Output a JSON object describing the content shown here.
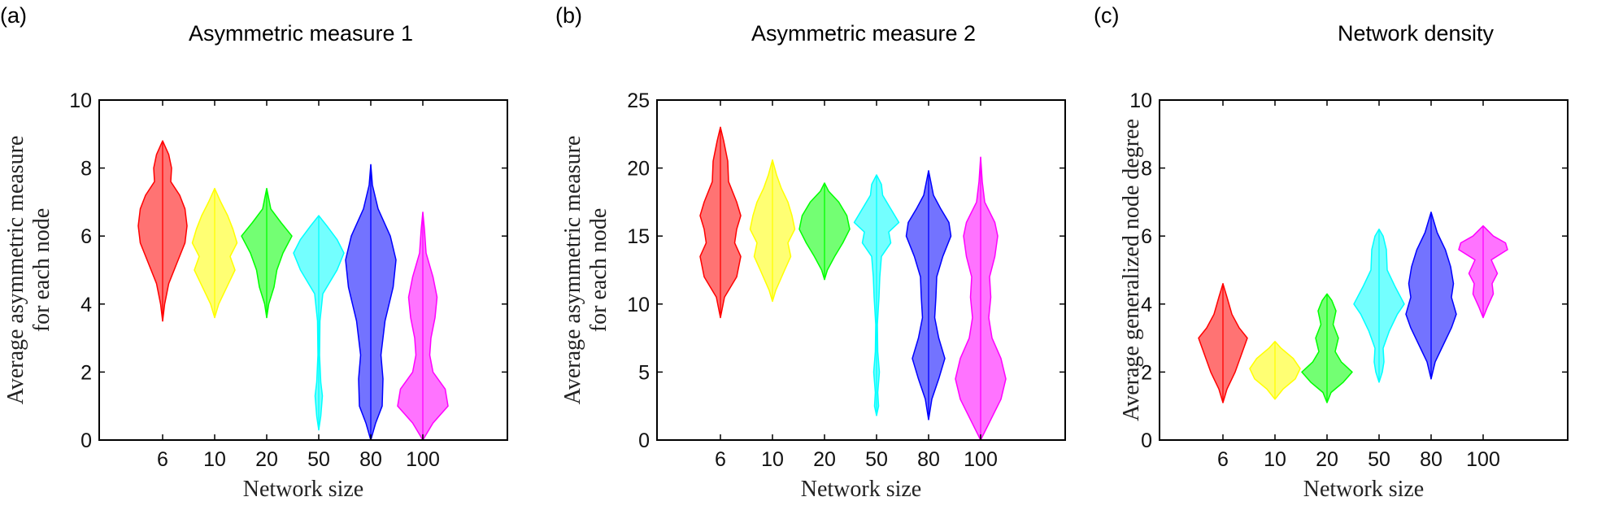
{
  "chart_data": [
    {
      "type": "violin",
      "panel_label": "(a)",
      "title": "Asymmetric measure 1",
      "xlabel": "Network size",
      "ylabel_lines": [
        "Average asymmetric measure",
        "for each node"
      ],
      "ylim": [
        0,
        10
      ],
      "yticks": [
        0,
        2,
        4,
        6,
        8,
        10
      ],
      "categories": [
        "6",
        "10",
        "20",
        "50",
        "80",
        "100"
      ],
      "colors": [
        "#ff0000",
        "#ffff00",
        "#00ff00",
        "#00ffff",
        "#0000ff",
        "#ff00ff"
      ],
      "violins": [
        {
          "min": 3.5,
          "max": 8.8,
          "profile": [
            [
              3.5,
              0.0
            ],
            [
              4.0,
              0.05
            ],
            [
              4.6,
              0.15
            ],
            [
              5.2,
              0.35
            ],
            [
              5.8,
              0.55
            ],
            [
              6.3,
              0.6
            ],
            [
              6.8,
              0.55
            ],
            [
              7.2,
              0.42
            ],
            [
              7.6,
              0.2
            ],
            [
              8.0,
              0.22
            ],
            [
              8.4,
              0.15
            ],
            [
              8.8,
              0.0
            ]
          ]
        },
        {
          "min": 3.6,
          "max": 7.4,
          "profile": [
            [
              3.6,
              0.0
            ],
            [
              4.0,
              0.1
            ],
            [
              4.5,
              0.3
            ],
            [
              5.0,
              0.5
            ],
            [
              5.4,
              0.38
            ],
            [
              5.8,
              0.55
            ],
            [
              6.2,
              0.45
            ],
            [
              6.6,
              0.32
            ],
            [
              7.0,
              0.15
            ],
            [
              7.4,
              0.0
            ]
          ]
        },
        {
          "min": 3.6,
          "max": 7.4,
          "profile": [
            [
              3.6,
              0.0
            ],
            [
              4.0,
              0.05
            ],
            [
              4.5,
              0.18
            ],
            [
              5.0,
              0.25
            ],
            [
              5.5,
              0.4
            ],
            [
              6.0,
              0.62
            ],
            [
              6.4,
              0.35
            ],
            [
              6.8,
              0.1
            ],
            [
              7.1,
              0.05
            ],
            [
              7.4,
              0.0
            ]
          ]
        },
        {
          "min": 0.3,
          "max": 6.6,
          "profile": [
            [
              0.3,
              0.0
            ],
            [
              0.7,
              0.05
            ],
            [
              1.0,
              0.07
            ],
            [
              1.3,
              0.09
            ],
            [
              1.7,
              0.05
            ],
            [
              2.5,
              0.02
            ],
            [
              3.5,
              0.03
            ],
            [
              4.3,
              0.1
            ],
            [
              5.0,
              0.45
            ],
            [
              5.5,
              0.62
            ],
            [
              5.9,
              0.45
            ],
            [
              6.3,
              0.2
            ],
            [
              6.6,
              0.0
            ]
          ]
        },
        {
          "min": 0.0,
          "max": 8.1,
          "profile": [
            [
              0.0,
              0.0
            ],
            [
              0.5,
              0.12
            ],
            [
              1.0,
              0.28
            ],
            [
              1.8,
              0.3
            ],
            [
              2.5,
              0.25
            ],
            [
              3.5,
              0.35
            ],
            [
              4.5,
              0.55
            ],
            [
              5.3,
              0.62
            ],
            [
              6.0,
              0.48
            ],
            [
              6.8,
              0.18
            ],
            [
              7.5,
              0.04
            ],
            [
              8.1,
              0.0
            ]
          ]
        },
        {
          "min": 0.0,
          "max": 6.7,
          "profile": [
            [
              0.0,
              0.0
            ],
            [
              0.5,
              0.25
            ],
            [
              1.0,
              0.62
            ],
            [
              1.5,
              0.55
            ],
            [
              2.0,
              0.25
            ],
            [
              2.5,
              0.17
            ],
            [
              3.0,
              0.2
            ],
            [
              3.6,
              0.3
            ],
            [
              4.2,
              0.35
            ],
            [
              4.8,
              0.25
            ],
            [
              5.5,
              0.08
            ],
            [
              6.2,
              0.04
            ],
            [
              6.7,
              0.0
            ]
          ]
        }
      ]
    },
    {
      "type": "violin",
      "panel_label": "(b)",
      "title": "Asymmetric measure 2",
      "xlabel": "Network size",
      "ylabel_lines": [
        "Average asymmetric measure",
        "for each node"
      ],
      "ylim": [
        0,
        25
      ],
      "yticks": [
        0,
        5,
        10,
        15,
        20,
        25
      ],
      "categories": [
        "6",
        "10",
        "20",
        "50",
        "80",
        "100"
      ],
      "colors": [
        "#ff0000",
        "#ffff00",
        "#00ff00",
        "#00ffff",
        "#0000ff",
        "#ff00ff"
      ],
      "violins": [
        {
          "min": 9.0,
          "max": 23.0,
          "profile": [
            [
              9.0,
              0.0
            ],
            [
              10.5,
              0.1
            ],
            [
              12.0,
              0.4
            ],
            [
              13.5,
              0.5
            ],
            [
              14.5,
              0.35
            ],
            [
              15.5,
              0.4
            ],
            [
              16.5,
              0.5
            ],
            [
              17.5,
              0.4
            ],
            [
              19.0,
              0.2
            ],
            [
              20.5,
              0.18
            ],
            [
              22.0,
              0.08
            ],
            [
              23.0,
              0.0
            ]
          ]
        },
        {
          "min": 10.2,
          "max": 20.6,
          "profile": [
            [
              10.2,
              0.0
            ],
            [
              11.0,
              0.08
            ],
            [
              12.5,
              0.3
            ],
            [
              13.5,
              0.45
            ],
            [
              14.5,
              0.38
            ],
            [
              15.5,
              0.55
            ],
            [
              16.5,
              0.48
            ],
            [
              17.5,
              0.38
            ],
            [
              18.5,
              0.22
            ],
            [
              19.5,
              0.1
            ],
            [
              20.6,
              0.0
            ]
          ]
        },
        {
          "min": 11.8,
          "max": 18.9,
          "profile": [
            [
              11.8,
              0.0
            ],
            [
              12.5,
              0.07
            ],
            [
              13.5,
              0.25
            ],
            [
              14.5,
              0.45
            ],
            [
              15.5,
              0.62
            ],
            [
              16.5,
              0.55
            ],
            [
              17.5,
              0.35
            ],
            [
              18.3,
              0.1
            ],
            [
              18.9,
              0.0
            ]
          ]
        },
        {
          "min": 1.8,
          "max": 19.5,
          "profile": [
            [
              1.8,
              0.0
            ],
            [
              2.5,
              0.05
            ],
            [
              3.5,
              0.03
            ],
            [
              5.0,
              0.07
            ],
            [
              6.5,
              0.03
            ],
            [
              8.5,
              0.02
            ],
            [
              10.5,
              0.06
            ],
            [
              12.0,
              0.08
            ],
            [
              13.5,
              0.12
            ],
            [
              14.5,
              0.35
            ],
            [
              15.3,
              0.3
            ],
            [
              16.0,
              0.55
            ],
            [
              17.0,
              0.35
            ],
            [
              18.0,
              0.15
            ],
            [
              18.8,
              0.12
            ],
            [
              19.5,
              0.0
            ]
          ]
        },
        {
          "min": 1.5,
          "max": 19.8,
          "profile": [
            [
              1.5,
              0.0
            ],
            [
              3.0,
              0.08
            ],
            [
              4.5,
              0.25
            ],
            [
              6.0,
              0.4
            ],
            [
              7.5,
              0.25
            ],
            [
              9.0,
              0.15
            ],
            [
              10.5,
              0.18
            ],
            [
              12.0,
              0.2
            ],
            [
              13.5,
              0.35
            ],
            [
              15.0,
              0.55
            ],
            [
              16.0,
              0.5
            ],
            [
              17.0,
              0.3
            ],
            [
              18.0,
              0.12
            ],
            [
              19.8,
              0.0
            ]
          ]
        },
        {
          "min": 0.0,
          "max": 20.8,
          "profile": [
            [
              0.0,
              0.0
            ],
            [
              1.5,
              0.25
            ],
            [
              3.0,
              0.5
            ],
            [
              4.5,
              0.62
            ],
            [
              6.0,
              0.5
            ],
            [
              7.5,
              0.28
            ],
            [
              9.0,
              0.2
            ],
            [
              10.5,
              0.25
            ],
            [
              12.0,
              0.22
            ],
            [
              13.5,
              0.35
            ],
            [
              15.0,
              0.42
            ],
            [
              16.0,
              0.35
            ],
            [
              17.5,
              0.1
            ],
            [
              19.0,
              0.04
            ],
            [
              20.8,
              0.0
            ]
          ]
        }
      ]
    },
    {
      "type": "violin",
      "panel_label": "(c)",
      "title": "Network density",
      "xlabel": "Network size",
      "ylabel_lines": [
        "Average generalized node degree"
      ],
      "ylim": [
        0,
        10
      ],
      "yticks": [
        0,
        2,
        4,
        6,
        8,
        10
      ],
      "categories": [
        "6",
        "10",
        "20",
        "50",
        "80",
        "100"
      ],
      "colors": [
        "#ff0000",
        "#ffff00",
        "#00ff00",
        "#00ffff",
        "#0000ff",
        "#ff00ff"
      ],
      "violins": [
        {
          "min": 1.1,
          "max": 4.6,
          "profile": [
            [
              1.1,
              0.0
            ],
            [
              1.5,
              0.1
            ],
            [
              2.0,
              0.3
            ],
            [
              2.5,
              0.45
            ],
            [
              3.0,
              0.6
            ],
            [
              3.3,
              0.4
            ],
            [
              3.7,
              0.22
            ],
            [
              4.2,
              0.1
            ],
            [
              4.6,
              0.0
            ]
          ]
        },
        {
          "min": 1.2,
          "max": 2.9,
          "profile": [
            [
              1.2,
              0.0
            ],
            [
              1.5,
              0.2
            ],
            [
              1.8,
              0.5
            ],
            [
              2.1,
              0.62
            ],
            [
              2.4,
              0.45
            ],
            [
              2.7,
              0.15
            ],
            [
              2.9,
              0.0
            ]
          ]
        },
        {
          "min": 1.1,
          "max": 4.3,
          "profile": [
            [
              1.1,
              0.0
            ],
            [
              1.4,
              0.1
            ],
            [
              1.7,
              0.4
            ],
            [
              2.0,
              0.62
            ],
            [
              2.3,
              0.35
            ],
            [
              2.6,
              0.2
            ],
            [
              3.0,
              0.28
            ],
            [
              3.4,
              0.15
            ],
            [
              3.8,
              0.22
            ],
            [
              4.1,
              0.12
            ],
            [
              4.3,
              0.0
            ]
          ]
        },
        {
          "min": 1.7,
          "max": 6.2,
          "profile": [
            [
              1.7,
              0.0
            ],
            [
              2.0,
              0.08
            ],
            [
              2.3,
              0.12
            ],
            [
              2.7,
              0.1
            ],
            [
              3.2,
              0.25
            ],
            [
              3.7,
              0.45
            ],
            [
              4.0,
              0.62
            ],
            [
              4.5,
              0.4
            ],
            [
              5.0,
              0.2
            ],
            [
              5.6,
              0.18
            ],
            [
              6.0,
              0.1
            ],
            [
              6.2,
              0.0
            ]
          ]
        },
        {
          "min": 1.8,
          "max": 6.7,
          "profile": [
            [
              1.8,
              0.0
            ],
            [
              2.3,
              0.1
            ],
            [
              2.8,
              0.3
            ],
            [
              3.3,
              0.5
            ],
            [
              3.7,
              0.62
            ],
            [
              4.2,
              0.5
            ],
            [
              4.6,
              0.55
            ],
            [
              5.1,
              0.48
            ],
            [
              5.6,
              0.35
            ],
            [
              6.1,
              0.15
            ],
            [
              6.7,
              0.0
            ]
          ]
        },
        {
          "min": 3.6,
          "max": 6.3,
          "profile": [
            [
              3.6,
              0.0
            ],
            [
              3.9,
              0.1
            ],
            [
              4.3,
              0.25
            ],
            [
              4.6,
              0.22
            ],
            [
              4.9,
              0.35
            ],
            [
              5.3,
              0.2
            ],
            [
              5.6,
              0.6
            ],
            [
              5.8,
              0.55
            ],
            [
              6.0,
              0.25
            ],
            [
              6.3,
              0.0
            ]
          ]
        }
      ]
    }
  ]
}
